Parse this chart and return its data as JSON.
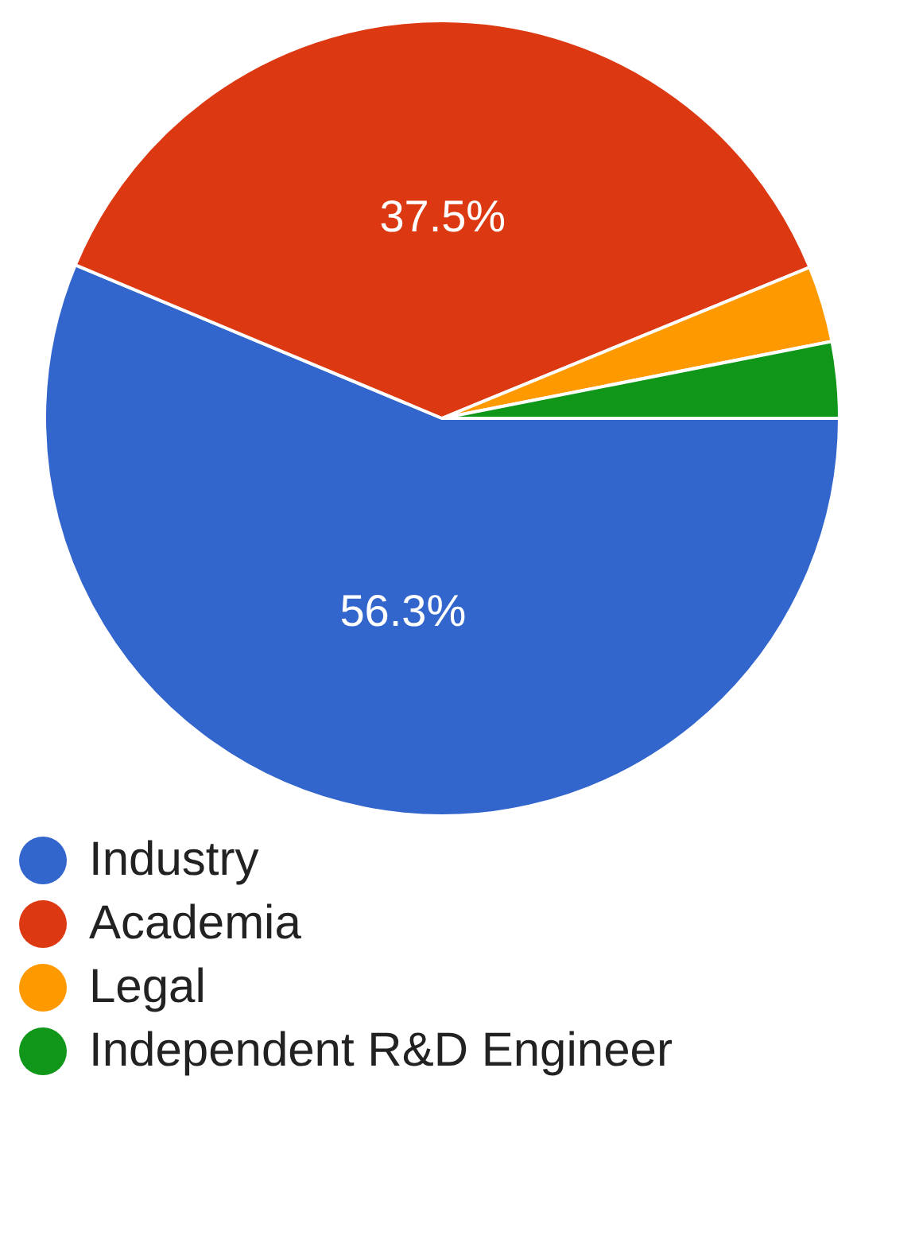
{
  "chart_data": {
    "type": "pie",
    "categories": [
      "Industry",
      "Academia",
      "Legal",
      "Independent R&D Engineer"
    ],
    "values": [
      56.3,
      37.5,
      3.1,
      3.1
    ],
    "colors": [
      "#3366cc",
      "#dc3912",
      "#ff9900",
      "#109618"
    ],
    "value_labels": [
      "56.3%",
      "37.5%",
      null,
      null
    ],
    "legend": "bottom"
  }
}
